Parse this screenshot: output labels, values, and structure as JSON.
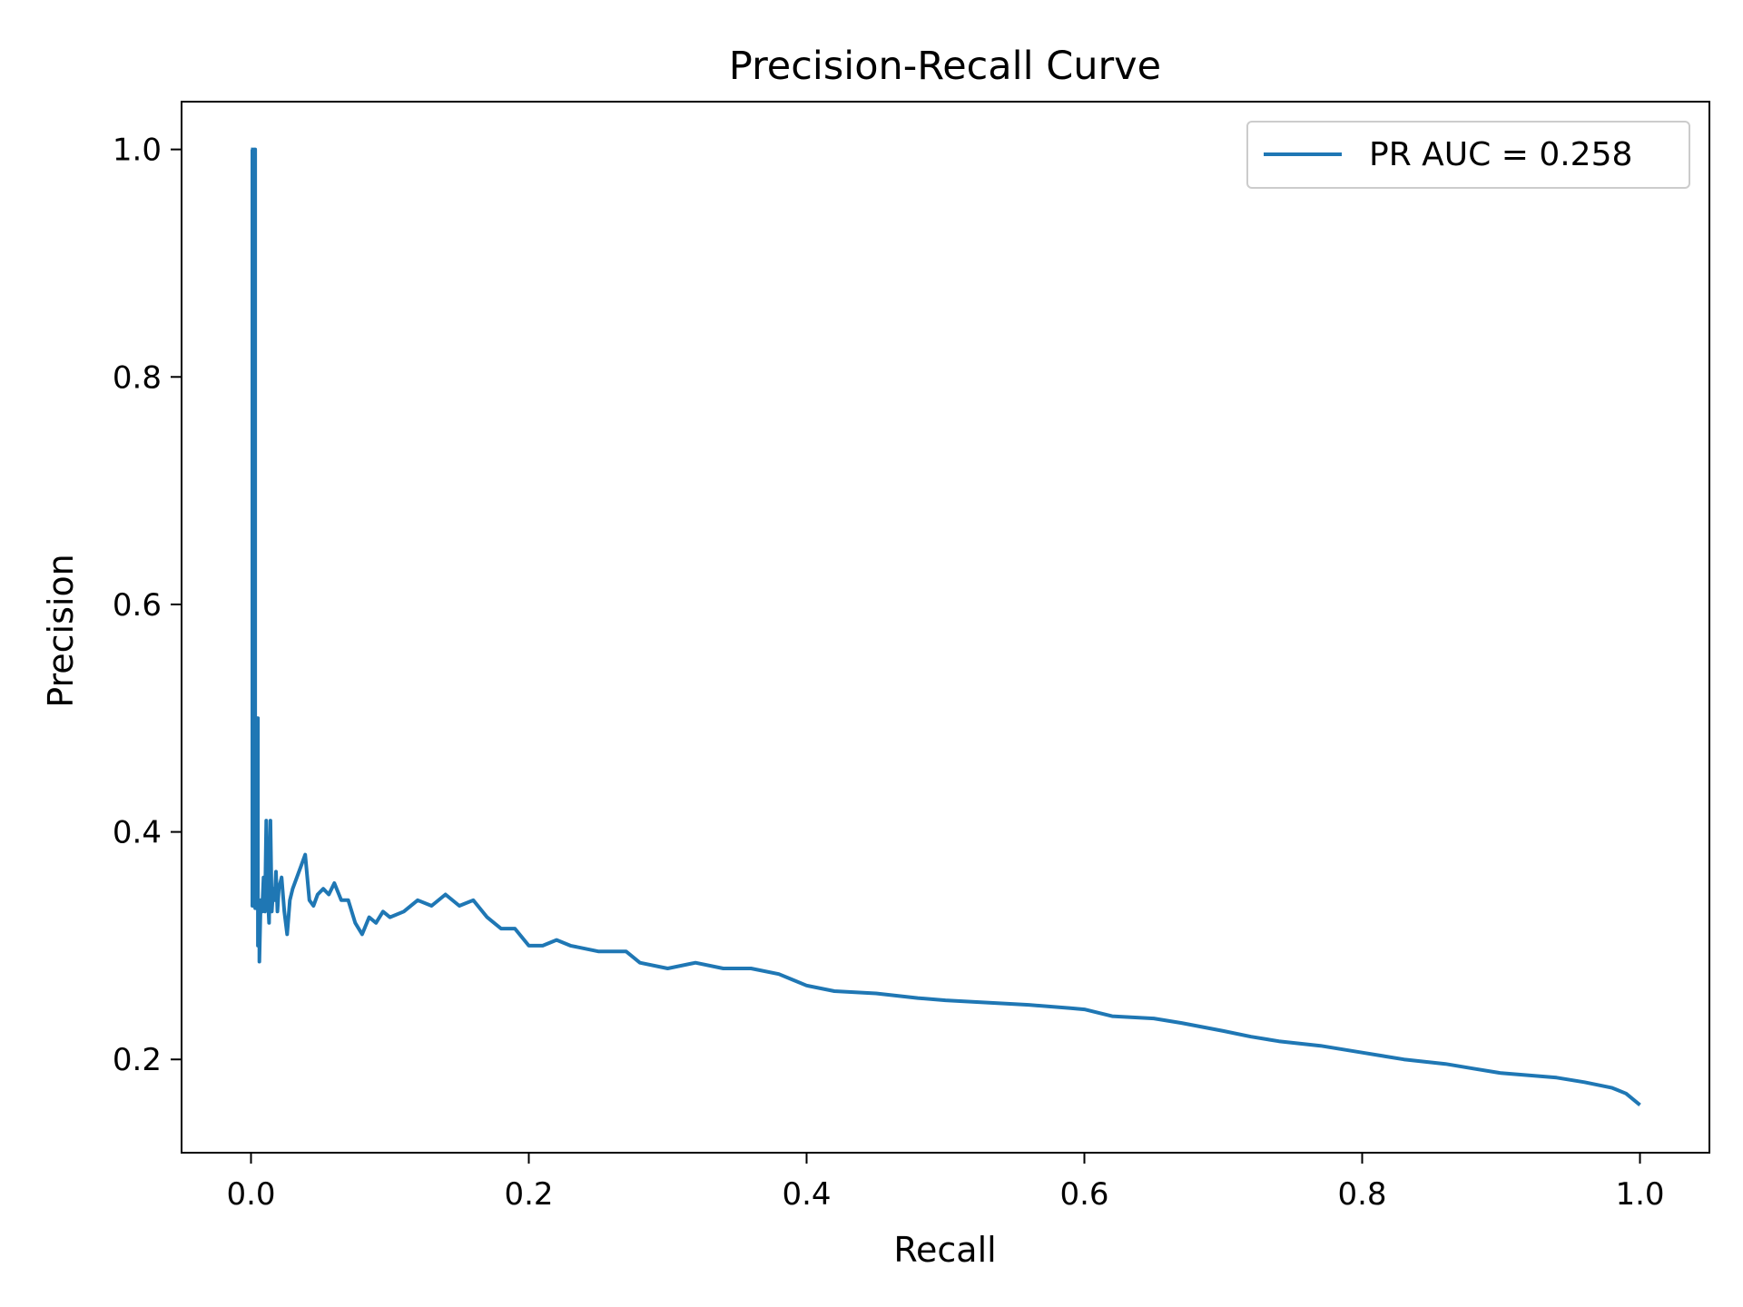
{
  "chart_data": {
    "type": "line",
    "title": "Precision-Recall Curve",
    "xlabel": "Recall",
    "ylabel": "Precision",
    "xlim": [
      -0.05,
      1.05
    ],
    "ylim": [
      0.118,
      1.042
    ],
    "xticks": [
      0.0,
      0.2,
      0.4,
      0.6,
      0.8,
      1.0
    ],
    "yticks": [
      0.2,
      0.4,
      0.6,
      0.8,
      1.0
    ],
    "xtick_labels": [
      "0.0",
      "0.2",
      "0.4",
      "0.6",
      "0.8",
      "1.0"
    ],
    "ytick_labels": [
      "0.2",
      "0.4",
      "0.6",
      "0.8",
      "1.0"
    ],
    "grid": false,
    "legend_position": "top-right",
    "series": [
      {
        "name": "PR AUC = 0.258",
        "color": "#1f77b4",
        "x": [
          0.0,
          0.001,
          0.001,
          0.002,
          0.002,
          0.003,
          0.003,
          0.004,
          0.004,
          0.005,
          0.005,
          0.006,
          0.006,
          0.007,
          0.008,
          0.009,
          0.01,
          0.011,
          0.012,
          0.013,
          0.014,
          0.015,
          0.016,
          0.017,
          0.018,
          0.019,
          0.02,
          0.022,
          0.024,
          0.026,
          0.028,
          0.03,
          0.033,
          0.036,
          0.039,
          0.042,
          0.045,
          0.048,
          0.052,
          0.056,
          0.06,
          0.065,
          0.07,
          0.075,
          0.08,
          0.085,
          0.09,
          0.095,
          0.1,
          0.11,
          0.12,
          0.13,
          0.14,
          0.15,
          0.16,
          0.17,
          0.18,
          0.19,
          0.2,
          0.21,
          0.22,
          0.23,
          0.25,
          0.27,
          0.28,
          0.3,
          0.32,
          0.34,
          0.36,
          0.38,
          0.39,
          0.4,
          0.42,
          0.45,
          0.48,
          0.5,
          0.53,
          0.56,
          0.59,
          0.6,
          0.62,
          0.65,
          0.67,
          0.7,
          0.72,
          0.74,
          0.77,
          0.8,
          0.83,
          0.86,
          0.88,
          0.9,
          0.92,
          0.94,
          0.96,
          0.98,
          0.99,
          1.0
        ],
        "y": [
          1.0,
          1.0,
          0.335,
          0.335,
          1.0,
          1.0,
          0.333,
          0.333,
          0.5,
          0.5,
          0.3,
          0.3,
          0.286,
          0.34,
          0.33,
          0.36,
          0.33,
          0.41,
          0.345,
          0.32,
          0.41,
          0.33,
          0.35,
          0.34,
          0.365,
          0.33,
          0.35,
          0.36,
          0.33,
          0.31,
          0.34,
          0.35,
          0.36,
          0.37,
          0.38,
          0.34,
          0.335,
          0.345,
          0.35,
          0.345,
          0.355,
          0.34,
          0.34,
          0.32,
          0.31,
          0.325,
          0.32,
          0.33,
          0.325,
          0.33,
          0.34,
          0.335,
          0.345,
          0.335,
          0.34,
          0.325,
          0.315,
          0.315,
          0.3,
          0.3,
          0.305,
          0.3,
          0.295,
          0.295,
          0.285,
          0.28,
          0.285,
          0.28,
          0.28,
          0.275,
          0.27,
          0.265,
          0.26,
          0.258,
          0.254,
          0.252,
          0.25,
          0.248,
          0.245,
          0.244,
          0.238,
          0.236,
          0.232,
          0.225,
          0.22,
          0.216,
          0.212,
          0.206,
          0.2,
          0.196,
          0.192,
          0.188,
          0.186,
          0.184,
          0.18,
          0.175,
          0.17,
          0.16
        ]
      }
    ]
  }
}
